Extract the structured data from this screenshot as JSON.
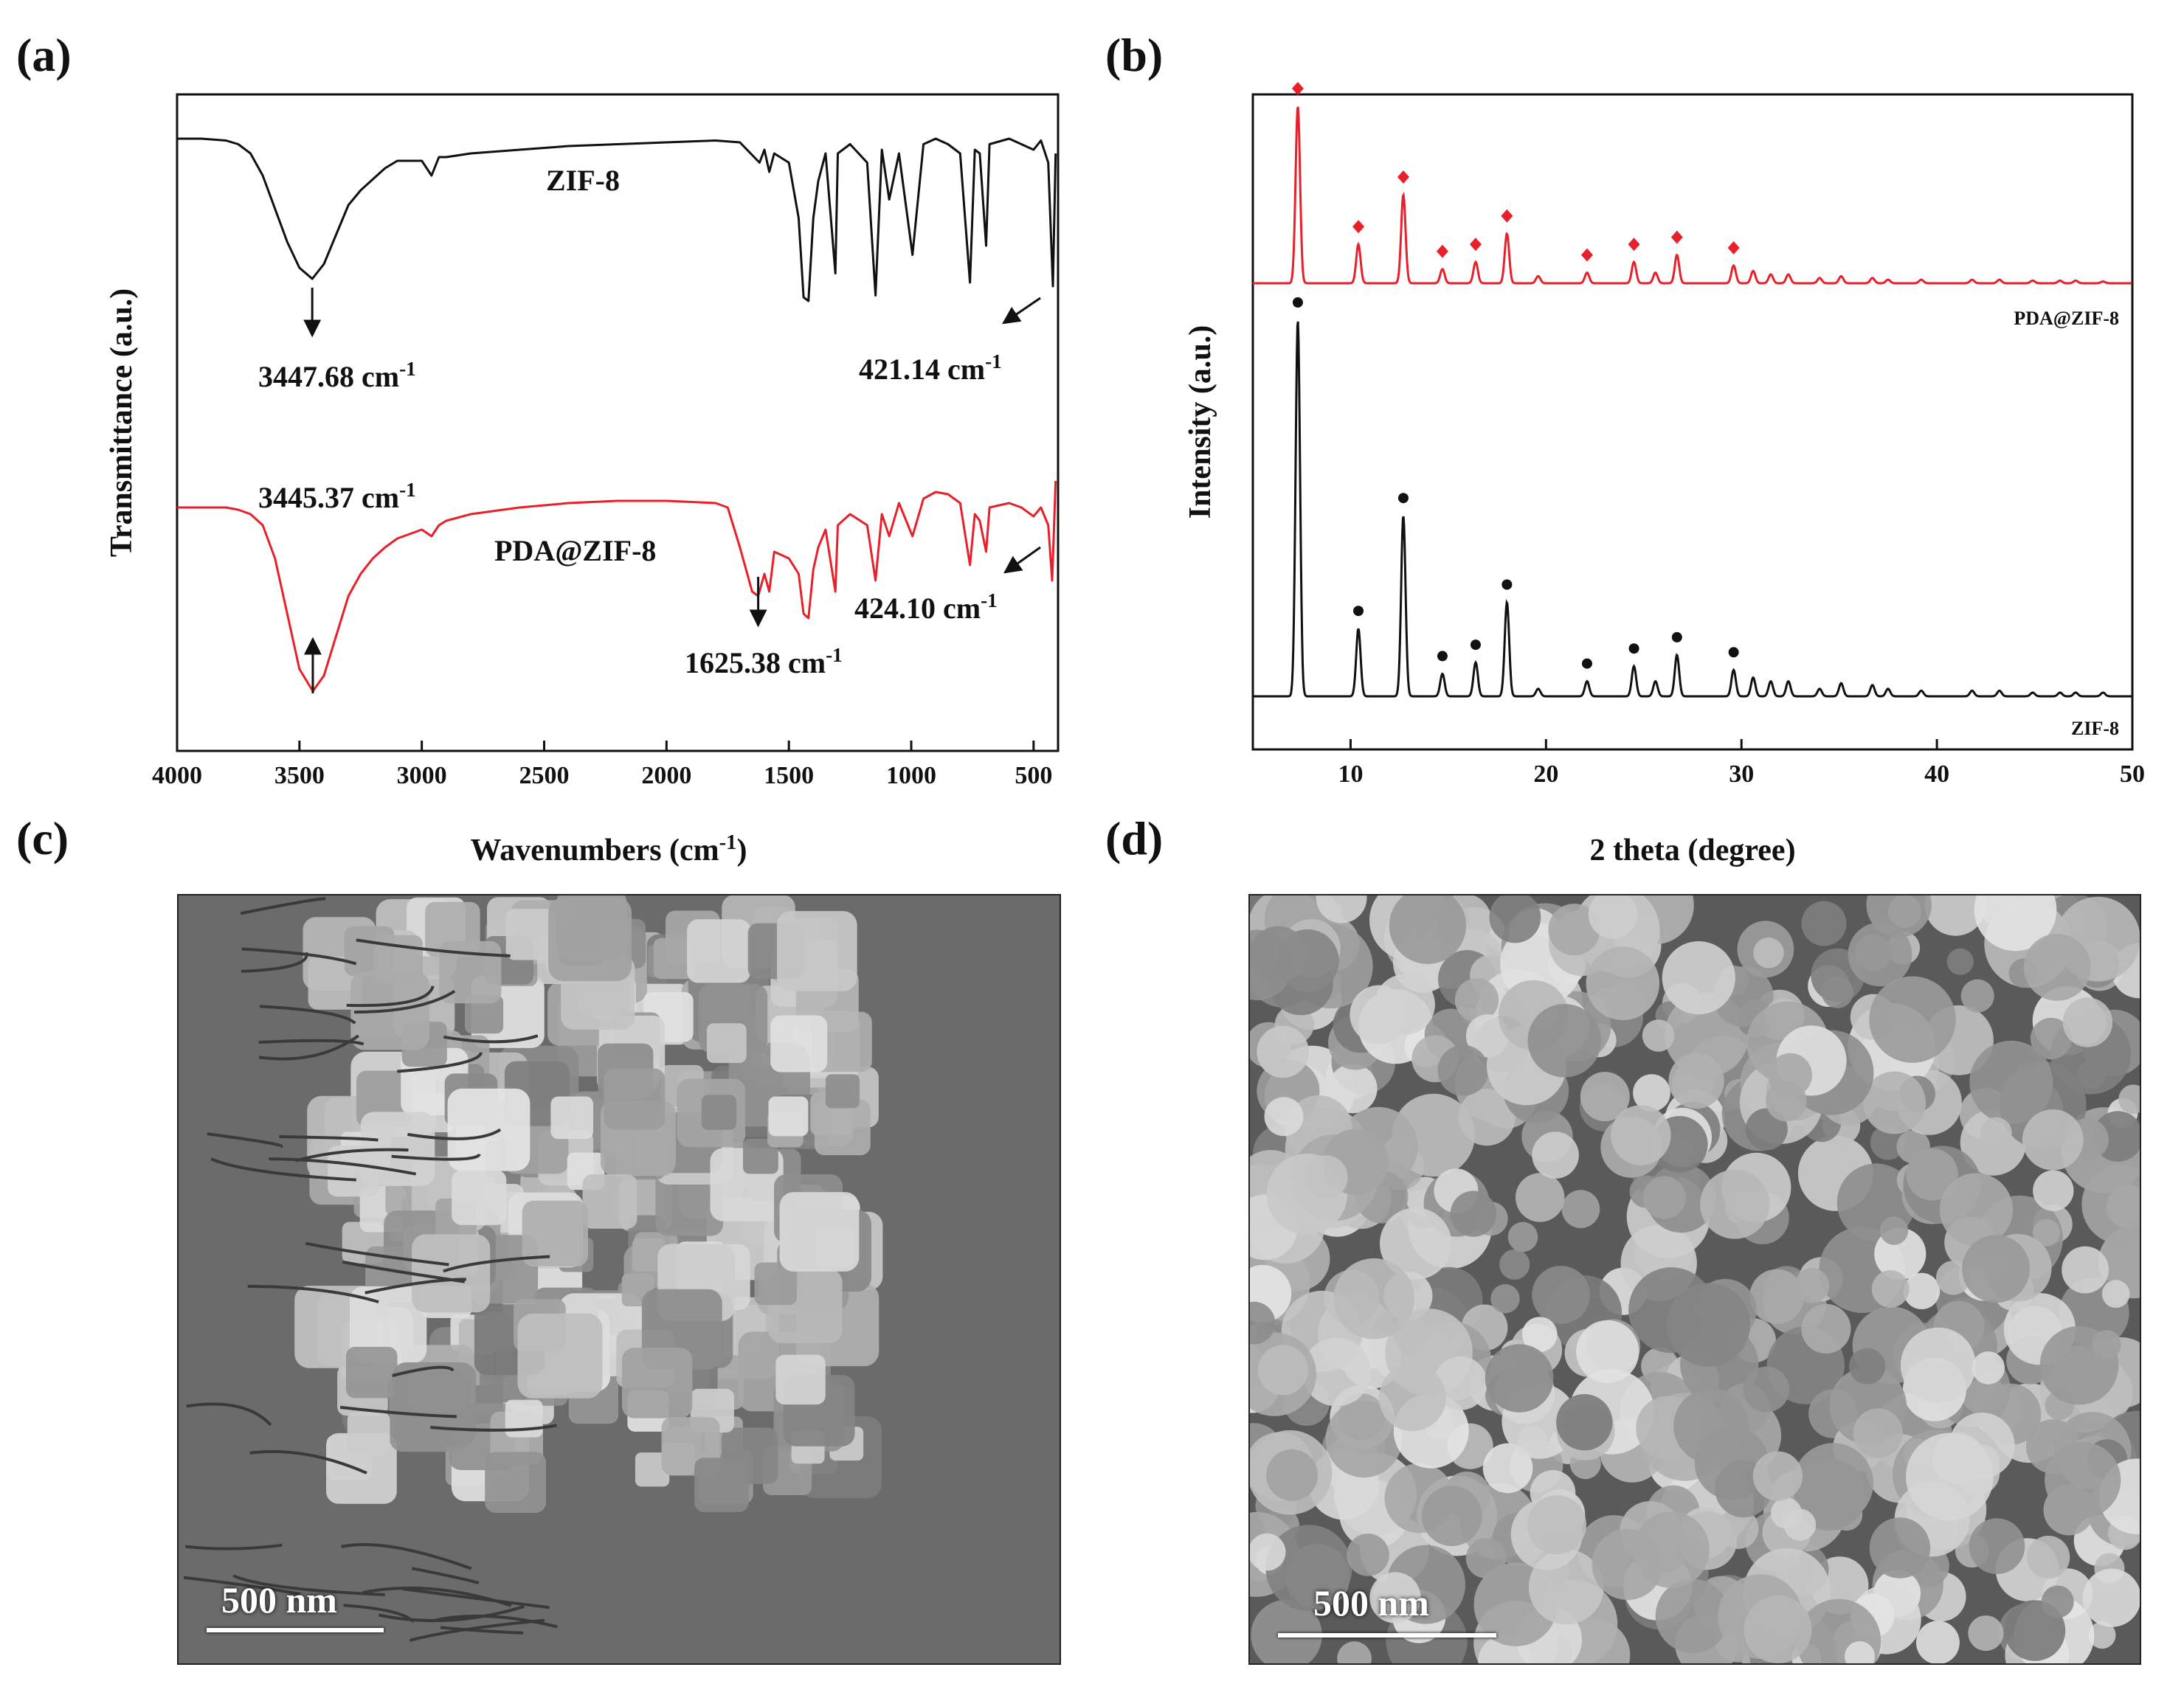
{
  "panels": {
    "a": "(a)",
    "b": "(b)",
    "c": "(c)",
    "d": "(d)"
  },
  "chart_data": [
    {
      "type": "line",
      "panel": "(a)",
      "xlabel": "Wavenumbers (cm",
      "xlabel_sup": "-1",
      "xlabel_end": ")",
      "ylabel": "Transmittance (a.u.)",
      "xlim": [
        4000,
        400
      ],
      "x_reversed": true,
      "xticks": [
        4000,
        3500,
        3000,
        2500,
        2000,
        1500,
        1000,
        500
      ],
      "yticks_shown": false,
      "series": [
        {
          "name": "ZIF-8",
          "color": "#111111",
          "x": [
            4000,
            3900,
            3800,
            3750,
            3700,
            3650,
            3600,
            3550,
            3500,
            3447.68,
            3400,
            3350,
            3300,
            3250,
            3200,
            3150,
            3100,
            3000,
            2960,
            2930,
            2900,
            2800,
            2600,
            2400,
            2200,
            2000,
            1800,
            1700,
            1620,
            1600,
            1580,
            1560,
            1500,
            1460,
            1440,
            1420,
            1400,
            1380,
            1350,
            1310,
            1300,
            1250,
            1180,
            1146,
            1120,
            1090,
            1050,
            995,
            950,
            900,
            850,
            800,
            760,
            740,
            720,
            694,
            680,
            600,
            550,
            500,
            470,
            440,
            421.14,
            410
          ],
          "y": [
            0.12,
            0.12,
            0.13,
            0.15,
            0.2,
            0.32,
            0.5,
            0.68,
            0.82,
            0.88,
            0.8,
            0.64,
            0.48,
            0.4,
            0.34,
            0.28,
            0.24,
            0.24,
            0.32,
            0.22,
            0.22,
            0.2,
            0.18,
            0.16,
            0.15,
            0.14,
            0.13,
            0.14,
            0.25,
            0.18,
            0.3,
            0.2,
            0.25,
            0.55,
            0.98,
            1.0,
            0.55,
            0.35,
            0.2,
            0.85,
            0.2,
            0.15,
            0.25,
            0.97,
            0.18,
            0.45,
            0.2,
            0.75,
            0.15,
            0.12,
            0.15,
            0.2,
            0.9,
            0.18,
            0.2,
            0.7,
            0.15,
            0.12,
            0.15,
            0.18,
            0.13,
            0.25,
            0.92,
            0.2
          ]
        },
        {
          "name": "PDA@ZIF-8",
          "color": "#e8202a",
          "x": [
            4000,
            3900,
            3800,
            3750,
            3700,
            3650,
            3600,
            3550,
            3500,
            3445.37,
            3400,
            3350,
            3300,
            3250,
            3200,
            3150,
            3100,
            3000,
            2960,
            2930,
            2900,
            2800,
            2600,
            2400,
            2200,
            2000,
            1800,
            1750,
            1700,
            1650,
            1625.38,
            1600,
            1580,
            1560,
            1500,
            1460,
            1440,
            1420,
            1400,
            1380,
            1350,
            1310,
            1300,
            1250,
            1180,
            1146,
            1120,
            1090,
            1050,
            995,
            950,
            900,
            850,
            800,
            760,
            740,
            720,
            694,
            680,
            600,
            550,
            500,
            470,
            440,
            424.1,
            410
          ],
          "y": [
            0.12,
            0.12,
            0.12,
            0.13,
            0.15,
            0.2,
            0.35,
            0.6,
            0.85,
            0.95,
            0.88,
            0.7,
            0.52,
            0.42,
            0.35,
            0.3,
            0.26,
            0.22,
            0.25,
            0.2,
            0.18,
            0.15,
            0.12,
            0.1,
            0.09,
            0.09,
            0.1,
            0.12,
            0.3,
            0.5,
            0.52,
            0.42,
            0.5,
            0.32,
            0.35,
            0.42,
            0.6,
            0.62,
            0.4,
            0.3,
            0.22,
            0.5,
            0.2,
            0.15,
            0.2,
            0.45,
            0.15,
            0.25,
            0.1,
            0.25,
            0.08,
            0.05,
            0.06,
            0.1,
            0.38,
            0.15,
            0.18,
            0.32,
            0.12,
            0.1,
            0.12,
            0.16,
            0.12,
            0.2,
            0.45,
            0.0
          ]
        }
      ],
      "annotations": [
        {
          "text": "3447.68 cm",
          "sup": "-1"
        },
        {
          "text": "421.14 cm",
          "sup": "-1"
        },
        {
          "text": "3445.37 cm",
          "sup": "-1"
        },
        {
          "text": "1625.38 cm",
          "sup": "-1"
        },
        {
          "text": "424.10 cm",
          "sup": "-1"
        }
      ],
      "series_labels": [
        "ZIF-8",
        "PDA@ZIF-8"
      ]
    },
    {
      "type": "line",
      "panel": "(b)",
      "xlabel": "2 theta (degree)",
      "ylabel": "Intensity (a.u.)",
      "xlim": [
        5,
        50
      ],
      "xticks": [
        10,
        20,
        30,
        40,
        50
      ],
      "yticks_shown": false,
      "peak_positions": [
        7.3,
        10.4,
        12.7,
        14.7,
        16.4,
        18.0,
        19.6,
        22.1,
        24.5,
        25.6,
        26.7,
        29.6,
        30.6,
        31.5,
        32.4,
        34.0,
        35.1,
        36.7,
        37.5,
        39.2,
        41.8,
        43.2,
        44.9,
        46.3,
        47.1,
        48.5
      ],
      "series": [
        {
          "name": "PDA@ZIF-8",
          "color": "#e8202a",
          "marker": "diamond",
          "peak_heights": [
            1.0,
            0.22,
            0.5,
            0.08,
            0.12,
            0.28,
            0.04,
            0.06,
            0.12,
            0.06,
            0.16,
            0.1,
            0.07,
            0.05,
            0.05,
            0.03,
            0.04,
            0.03,
            0.02,
            0.02,
            0.02,
            0.02,
            0.015,
            0.015,
            0.015,
            0.01
          ],
          "marked_peaks": [
            7.3,
            10.4,
            12.7,
            14.7,
            16.4,
            18.0,
            22.1,
            24.5,
            26.7,
            29.6
          ]
        },
        {
          "name": "ZIF-8",
          "color": "#111111",
          "marker": "circle",
          "peak_heights": [
            1.0,
            0.18,
            0.48,
            0.06,
            0.09,
            0.25,
            0.02,
            0.04,
            0.08,
            0.04,
            0.11,
            0.07,
            0.05,
            0.04,
            0.04,
            0.02,
            0.035,
            0.03,
            0.02,
            0.015,
            0.015,
            0.015,
            0.01,
            0.01,
            0.01,
            0.01
          ],
          "marked_peaks": [
            7.3,
            10.4,
            12.7,
            14.7,
            16.4,
            18.0,
            22.1,
            24.5,
            26.7,
            29.6
          ]
        }
      ],
      "series_labels": [
        "PDA@ZIF-8",
        "ZIF-8"
      ]
    }
  ],
  "sem": {
    "c": {
      "scale_label": "500 nm"
    },
    "d": {
      "scale_label": "500 nm"
    }
  }
}
